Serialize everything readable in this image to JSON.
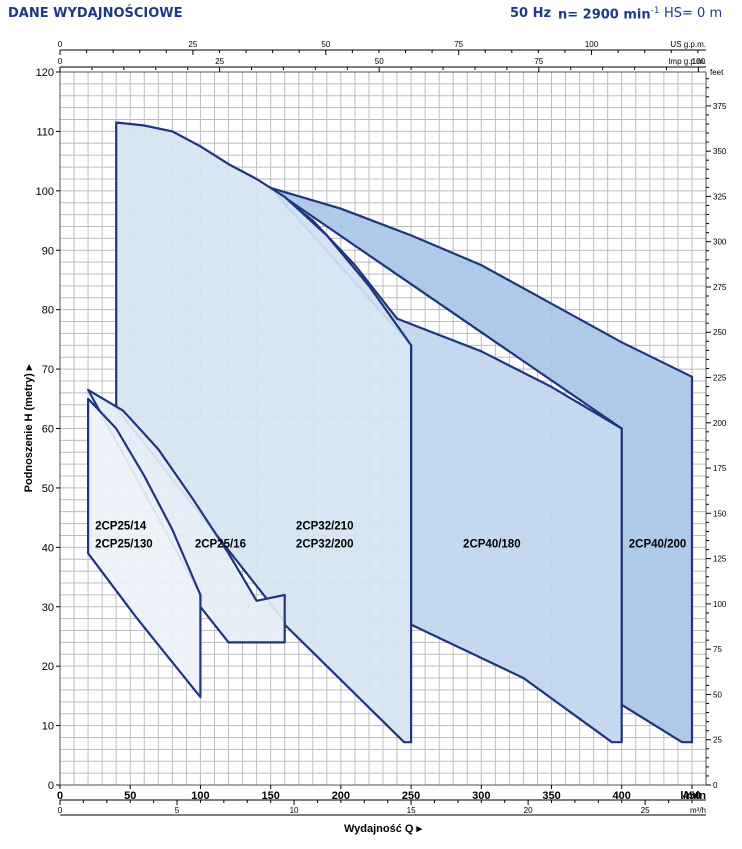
{
  "header": {
    "title": "DANE WYDAJNOŚCIOWE",
    "frequency": "50 Hz",
    "speed": "n= 2900 min",
    "speed_exp": "-1",
    "hs": "HS= 0 m"
  },
  "chart_data": {
    "type": "area",
    "x": {
      "label": "Wydajność Q",
      "unit": "l/min",
      "range": [
        0,
        460
      ],
      "ticks": [
        0,
        50,
        100,
        150,
        200,
        250,
        300,
        350,
        400,
        450
      ]
    },
    "y": {
      "label": "Podnoszenie H (metry)",
      "range": [
        0,
        120
      ],
      "ticks": [
        0,
        10,
        20,
        30,
        40,
        50,
        60,
        70,
        80,
        90,
        100,
        110,
        120
      ]
    },
    "secondary_axes": [
      {
        "unit": "US g.p.m.",
        "position": "top",
        "ticks": [
          0,
          25,
          50,
          75,
          100
        ]
      },
      {
        "unit": "Imp g.p.m.",
        "position": "top",
        "ticks": [
          0,
          25,
          50,
          75,
          100
        ]
      },
      {
        "unit": "m³/h",
        "position": "bottom",
        "ticks": [
          0,
          5,
          10,
          15,
          20,
          25
        ]
      },
      {
        "unit": "feet",
        "position": "right",
        "ticks": [
          0,
          25,
          50,
          75,
          100,
          125,
          150,
          175,
          200,
          225,
          250,
          275,
          300,
          325,
          350,
          375
        ]
      }
    ],
    "grid": true,
    "series": [
      {
        "name": "2CP40/200",
        "color": "#a9c7e7",
        "points": [
          [
            150,
            100.5
          ],
          [
            200,
            97
          ],
          [
            250,
            92.5
          ],
          [
            300,
            87.5
          ],
          [
            350,
            81
          ],
          [
            400,
            74.5
          ],
          [
            450,
            68.7
          ],
          [
            450,
            7.2
          ],
          [
            443,
            7.2
          ],
          [
            400,
            13.5
          ],
          [
            400,
            60
          ]
        ]
      },
      {
        "name": "2CP40/180",
        "color": "#bfd6ee",
        "points": [
          [
            150,
            100.5
          ],
          [
            180,
            95
          ],
          [
            210,
            87.5
          ],
          [
            240,
            78.5
          ],
          [
            300,
            73
          ],
          [
            350,
            67
          ],
          [
            400,
            60
          ],
          [
            400,
            7.2
          ],
          [
            393,
            7.2
          ],
          [
            330,
            18
          ],
          [
            250,
            27
          ],
          [
            250,
            74
          ]
        ]
      },
      {
        "name": "2CP32/210 / 2CP32/200",
        "color": "#d6e4f3",
        "points": [
          [
            40,
            111.5
          ],
          [
            60,
            111
          ],
          [
            80,
            110
          ],
          [
            100,
            107.5
          ],
          [
            120,
            104.5
          ],
          [
            140,
            102
          ],
          [
            160,
            99
          ],
          [
            190,
            92.5
          ],
          [
            220,
            84
          ],
          [
            250,
            74
          ],
          [
            250,
            7.2
          ],
          [
            245,
            7.2
          ],
          [
            160,
            27
          ],
          [
            160,
            27.5
          ],
          [
            40,
            63.5
          ]
        ]
      },
      {
        "name": "2CP25/16",
        "color": "#e4edf7",
        "points": [
          [
            20,
            66.5
          ],
          [
            45,
            63
          ],
          [
            70,
            56.5
          ],
          [
            95,
            48
          ],
          [
            120,
            39
          ],
          [
            140,
            31
          ],
          [
            160,
            32
          ],
          [
            160,
            24
          ],
          [
            120,
            24
          ],
          [
            100,
            30
          ],
          [
            100,
            32
          ]
        ]
      },
      {
        "name": "2CP25/14 / 2CP25/130",
        "color": "#ecf2f9",
        "points": [
          [
            20,
            65
          ],
          [
            40,
            60
          ],
          [
            60,
            52
          ],
          [
            80,
            43
          ],
          [
            100,
            32
          ],
          [
            100,
            14.8
          ],
          [
            55,
            28
          ],
          [
            20,
            39
          ]
        ]
      }
    ],
    "labels": [
      {
        "text": "2CP25/14",
        "x": 25,
        "y": 43
      },
      {
        "text": "2CP25/130",
        "x": 25,
        "y": 40
      },
      {
        "text": "2CP25/16",
        "x": 96,
        "y": 40
      },
      {
        "text": "2CP32/210",
        "x": 168,
        "y": 43
      },
      {
        "text": "2CP32/200",
        "x": 168,
        "y": 40
      },
      {
        "text": "2CP40/180",
        "x": 287,
        "y": 40
      },
      {
        "text": "2CP40/200",
        "x": 405,
        "y": 40
      }
    ]
  }
}
